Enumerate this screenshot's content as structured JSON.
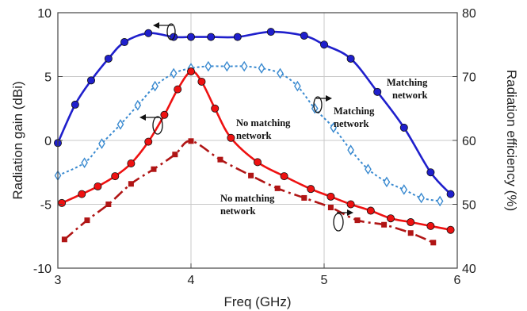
{
  "chart_data": {
    "type": "line",
    "title": "",
    "xlabel": "Freq (GHz)",
    "ylabel": "Radiation gain (dBi)",
    "y2label": "Radiation efficiency (%)",
    "xlim": [
      3,
      6
    ],
    "ylim": [
      -10,
      10
    ],
    "y2lim": [
      40,
      80
    ],
    "x_ticks": [
      3,
      4,
      5,
      6
    ],
    "y_ticks": [
      -10,
      -5,
      0,
      5,
      10
    ],
    "y2_ticks": [
      40,
      50,
      60,
      70,
      80
    ],
    "grid": true,
    "series": [
      {
        "axis": "left",
        "color": "#1f1fcc",
        "marker": "circle",
        "line": "solid",
        "x": [
          3.0,
          3.13,
          3.25,
          3.38,
          3.5,
          3.68,
          3.87,
          4.0,
          4.15,
          4.35,
          4.6,
          4.85,
          5.0,
          5.2,
          5.4,
          5.6,
          5.8,
          5.95
        ],
        "y": [
          -0.2,
          2.8,
          4.7,
          6.4,
          7.7,
          8.4,
          8.1,
          8.1,
          8.1,
          8.1,
          8.5,
          8.2,
          7.5,
          6.4,
          3.8,
          1.0,
          -2.5,
          -4.2
        ]
      },
      {
        "axis": "right",
        "color": "#3a8ad0",
        "marker": "diamond-open",
        "line": "dotted",
        "x": [
          3.0,
          3.2,
          3.33,
          3.47,
          3.6,
          3.73,
          3.87,
          4.0,
          4.13,
          4.27,
          4.4,
          4.53,
          4.67,
          4.8,
          4.93,
          5.07,
          5.2,
          5.33,
          5.47,
          5.6,
          5.73,
          5.87
        ],
        "y": [
          54.5,
          56.5,
          59.5,
          62.5,
          65.5,
          68.5,
          70.5,
          71.3,
          71.6,
          71.6,
          71.6,
          71.3,
          70.5,
          68.5,
          65.0,
          62.0,
          58.5,
          55.5,
          53.5,
          52.3,
          51.0,
          50.5
        ]
      },
      {
        "axis": "left",
        "color": "#ee1111",
        "marker": "circle",
        "line": "solid",
        "x": [
          3.03,
          3.18,
          3.3,
          3.43,
          3.55,
          3.68,
          3.8,
          3.9,
          4.0,
          4.08,
          4.18,
          4.3,
          4.5,
          4.7,
          4.9,
          5.05,
          5.2,
          5.35,
          5.5,
          5.65,
          5.8,
          5.95
        ],
        "y": [
          -4.9,
          -4.2,
          -3.6,
          -2.8,
          -1.8,
          -0.1,
          2.0,
          4.0,
          5.4,
          4.6,
          2.5,
          0.2,
          -1.7,
          -2.8,
          -3.8,
          -4.4,
          -5.0,
          -5.5,
          -6.1,
          -6.4,
          -6.7,
          -7.0
        ]
      },
      {
        "axis": "right",
        "color": "#b01515",
        "marker": "square",
        "line": "dashdot",
        "x": [
          3.05,
          3.22,
          3.38,
          3.55,
          3.72,
          3.88,
          4.0,
          4.22,
          4.45,
          4.65,
          4.85,
          5.05,
          5.25,
          5.45,
          5.65,
          5.82
        ],
        "y": [
          44.5,
          47.5,
          50.0,
          53.2,
          55.5,
          57.8,
          59.9,
          57.0,
          54.5,
          52.5,
          51.0,
          49.5,
          47.5,
          46.8,
          45.5,
          44.0
        ]
      }
    ],
    "annotations": [
      {
        "lines": [
          "Matching",
          "network"
        ]
      },
      {
        "lines": [
          "Matching",
          "network"
        ]
      },
      {
        "lines": [
          "No matching",
          "network"
        ]
      },
      {
        "lines": [
          "No matching",
          "network"
        ]
      }
    ]
  }
}
